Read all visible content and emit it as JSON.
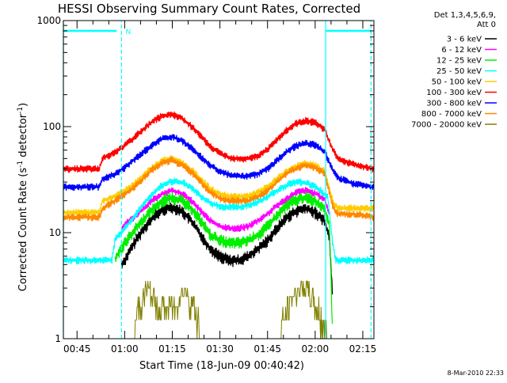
{
  "chart_data": {
    "type": "line",
    "title": "HESSI Observing Summary Count Rates, Corrected",
    "xlabel": "Start Time (18-Jun-09 00:40:42)",
    "ylabel": "Corrected Count Rate (s⁻¹ detector⁻¹)",
    "ylabel_parts": {
      "main": "Corrected Count Rate (s",
      "exp1": "-1",
      "mid": " detector",
      "exp2": "-1",
      "end": ")"
    },
    "y_scale": "log",
    "xlim_min": [
      40.7,
      138.5
    ],
    "ylim": [
      1,
      1000
    ],
    "x_ticks": [
      {
        "min": 45,
        "label": "00:45"
      },
      {
        "min": 60,
        "label": "01:00"
      },
      {
        "min": 75,
        "label": "01:15"
      },
      {
        "min": 90,
        "label": "01:30"
      },
      {
        "min": 105,
        "label": "01:45"
      },
      {
        "min": 120,
        "label": "02:00"
      },
      {
        "min": 135,
        "label": "02:15"
      }
    ],
    "y_ticks": [
      {
        "value": 1,
        "label": "1"
      },
      {
        "value": 10,
        "label": "10"
      },
      {
        "value": 100,
        "label": "100"
      },
      {
        "value": 1000,
        "label": "1000"
      }
    ],
    "legend_title_lines": [
      "Det 1,3,4,5,6,9,",
      "Att 0"
    ],
    "legend_position": "right, outside plot",
    "series": [
      {
        "name": "3 - 6 keV",
        "color": "#000000",
        "x": [
          59,
          60,
          63,
          66,
          69,
          72,
          75,
          78,
          81,
          84,
          87,
          90,
          93,
          96,
          99,
          102,
          105,
          108,
          111,
          114,
          117,
          120,
          123,
          124.5,
          125.5
        ],
        "values": [
          5,
          5.5,
          8,
          11,
          14,
          16.5,
          17.5,
          16,
          13,
          9.5,
          7,
          6,
          5.5,
          5.5,
          6,
          7,
          8.5,
          11,
          14,
          16,
          17,
          15.5,
          13,
          9,
          2.5
        ]
      },
      {
        "name": "6 - 12 keV",
        "color": "#ff00ff",
        "x": [
          59,
          60,
          63,
          66,
          69,
          72,
          75,
          78,
          81,
          84,
          87,
          90,
          93,
          96,
          99,
          102,
          105,
          108,
          111,
          114,
          117,
          120,
          123,
          124.5
        ],
        "values": [
          11,
          12,
          14,
          17,
          20.5,
          23.5,
          25,
          23.5,
          20,
          16,
          13,
          11.5,
          11,
          11,
          11.5,
          13,
          15,
          18,
          21,
          24,
          25,
          23.5,
          20.5,
          15
        ]
      },
      {
        "name": "12 - 25 keV",
        "color": "#00ee00",
        "x": [
          57,
          58,
          60,
          63,
          66,
          69,
          72,
          75,
          78,
          81,
          84,
          87,
          90,
          93,
          96,
          99,
          102,
          105,
          108,
          111,
          114,
          117,
          120,
          123,
          124.5,
          125.5
        ],
        "values": [
          5.5,
          6.5,
          8,
          10.5,
          13.5,
          17,
          20,
          21.5,
          20,
          17,
          13,
          9.5,
          8.5,
          8,
          8,
          8.5,
          9.5,
          11.5,
          14.5,
          18,
          20.5,
          21.5,
          20,
          17,
          12,
          1
        ]
      },
      {
        "name": "25 - 50 keV",
        "color": "#00ffff",
        "x": [
          40.7,
          56,
          57,
          59,
          62,
          65,
          68,
          71,
          74,
          76,
          79,
          82,
          85,
          88,
          91,
          94,
          97,
          100,
          103,
          106,
          109,
          112,
          115,
          118,
          121,
          124,
          125.5,
          126.5,
          132,
          138.5
        ],
        "values": [
          5.5,
          5.5,
          9,
          10,
          13,
          17,
          22,
          27,
          30,
          31,
          29,
          25,
          21,
          18.5,
          17.5,
          17.5,
          17.5,
          18.5,
          20,
          23,
          26,
          29,
          30,
          29,
          26,
          21.5,
          8,
          5.5,
          5.5,
          5.5
        ]
      },
      {
        "name": "50 - 100 keV",
        "color": "#ffcc00",
        "x": [
          40.7,
          52,
          53,
          57,
          60,
          63,
          66,
          69,
          72,
          75,
          78,
          81,
          84,
          87,
          90,
          93,
          96,
          99,
          102,
          105,
          108,
          111,
          114,
          117,
          120,
          123,
          125.5,
          127,
          132,
          138.5
        ],
        "values": [
          15.5,
          15.5,
          20,
          22,
          25,
          29,
          35,
          42,
          48,
          50,
          46,
          39,
          32,
          26,
          23,
          22,
          22,
          22,
          24,
          27,
          32,
          38,
          42,
          45,
          43,
          38,
          20,
          17,
          17,
          17
        ]
      },
      {
        "name": "100 - 300 keV",
        "color": "#ff0000",
        "x": [
          40.7,
          52,
          53,
          57,
          60,
          63,
          66,
          69,
          72,
          75,
          78,
          81,
          84,
          87,
          90,
          93,
          96,
          99,
          102,
          105,
          108,
          111,
          114,
          117,
          120,
          123,
          125,
          127,
          132,
          138.5
        ],
        "values": [
          40,
          40,
          50,
          57,
          66,
          79,
          95,
          114,
          127,
          130,
          120,
          101,
          81,
          65,
          56,
          51,
          50,
          50,
          53,
          61,
          75,
          92,
          107,
          114,
          109,
          93,
          67,
          50,
          44,
          40
        ]
      },
      {
        "name": "300 - 800 keV",
        "color": "#0000ff",
        "x": [
          40.7,
          52,
          53,
          57,
          60,
          63,
          66,
          69,
          72,
          75,
          78,
          81,
          84,
          87,
          90,
          93,
          96,
          99,
          102,
          105,
          108,
          111,
          114,
          117,
          120,
          123,
          125,
          127,
          132,
          138.5
        ],
        "values": [
          27,
          27,
          32,
          36,
          41,
          49,
          58,
          68,
          77,
          80,
          74,
          63,
          52,
          43,
          38,
          35,
          34,
          34,
          36,
          40,
          48,
          58,
          66,
          70,
          67,
          58,
          42,
          33,
          29,
          27
        ]
      },
      {
        "name": "800 - 7000 keV",
        "color": "#ff8800",
        "x": [
          40.7,
          52,
          53,
          57,
          60,
          63,
          66,
          69,
          72,
          75,
          78,
          81,
          84,
          87,
          90,
          93,
          96,
          99,
          102,
          105,
          108,
          111,
          114,
          117,
          120,
          123,
          125.5,
          127,
          132,
          138.5
        ],
        "values": [
          14,
          14,
          17,
          20,
          23,
          27,
          33,
          40,
          46,
          48,
          44,
          37,
          30,
          24,
          21,
          20,
          20,
          20,
          22,
          25,
          30,
          36,
          40,
          43,
          41,
          36,
          18,
          15,
          15,
          14
        ]
      },
      {
        "name": "7000 - 20000 keV",
        "color": "#808000",
        "x": [
          63,
          64,
          66,
          67,
          69,
          70,
          73,
          76,
          77,
          79,
          80,
          82,
          83,
          84,
          109,
          110,
          112,
          113,
          115,
          117,
          119,
          120,
          122,
          123,
          124
        ],
        "values": [
          1,
          2,
          2.5,
          3,
          2.5,
          2,
          2,
          2,
          2.5,
          3,
          2.5,
          2,
          1.5,
          1,
          1,
          1.5,
          2,
          2.5,
          3,
          3,
          2.5,
          2,
          1.5,
          1.2,
          1
        ]
      }
    ],
    "annotation_label": "N",
    "footer_date": "8-Mar-2010 22:33"
  },
  "colors": {
    "axes": "#000000",
    "marker_lines": "#00ffff",
    "background": "#ffffff"
  }
}
